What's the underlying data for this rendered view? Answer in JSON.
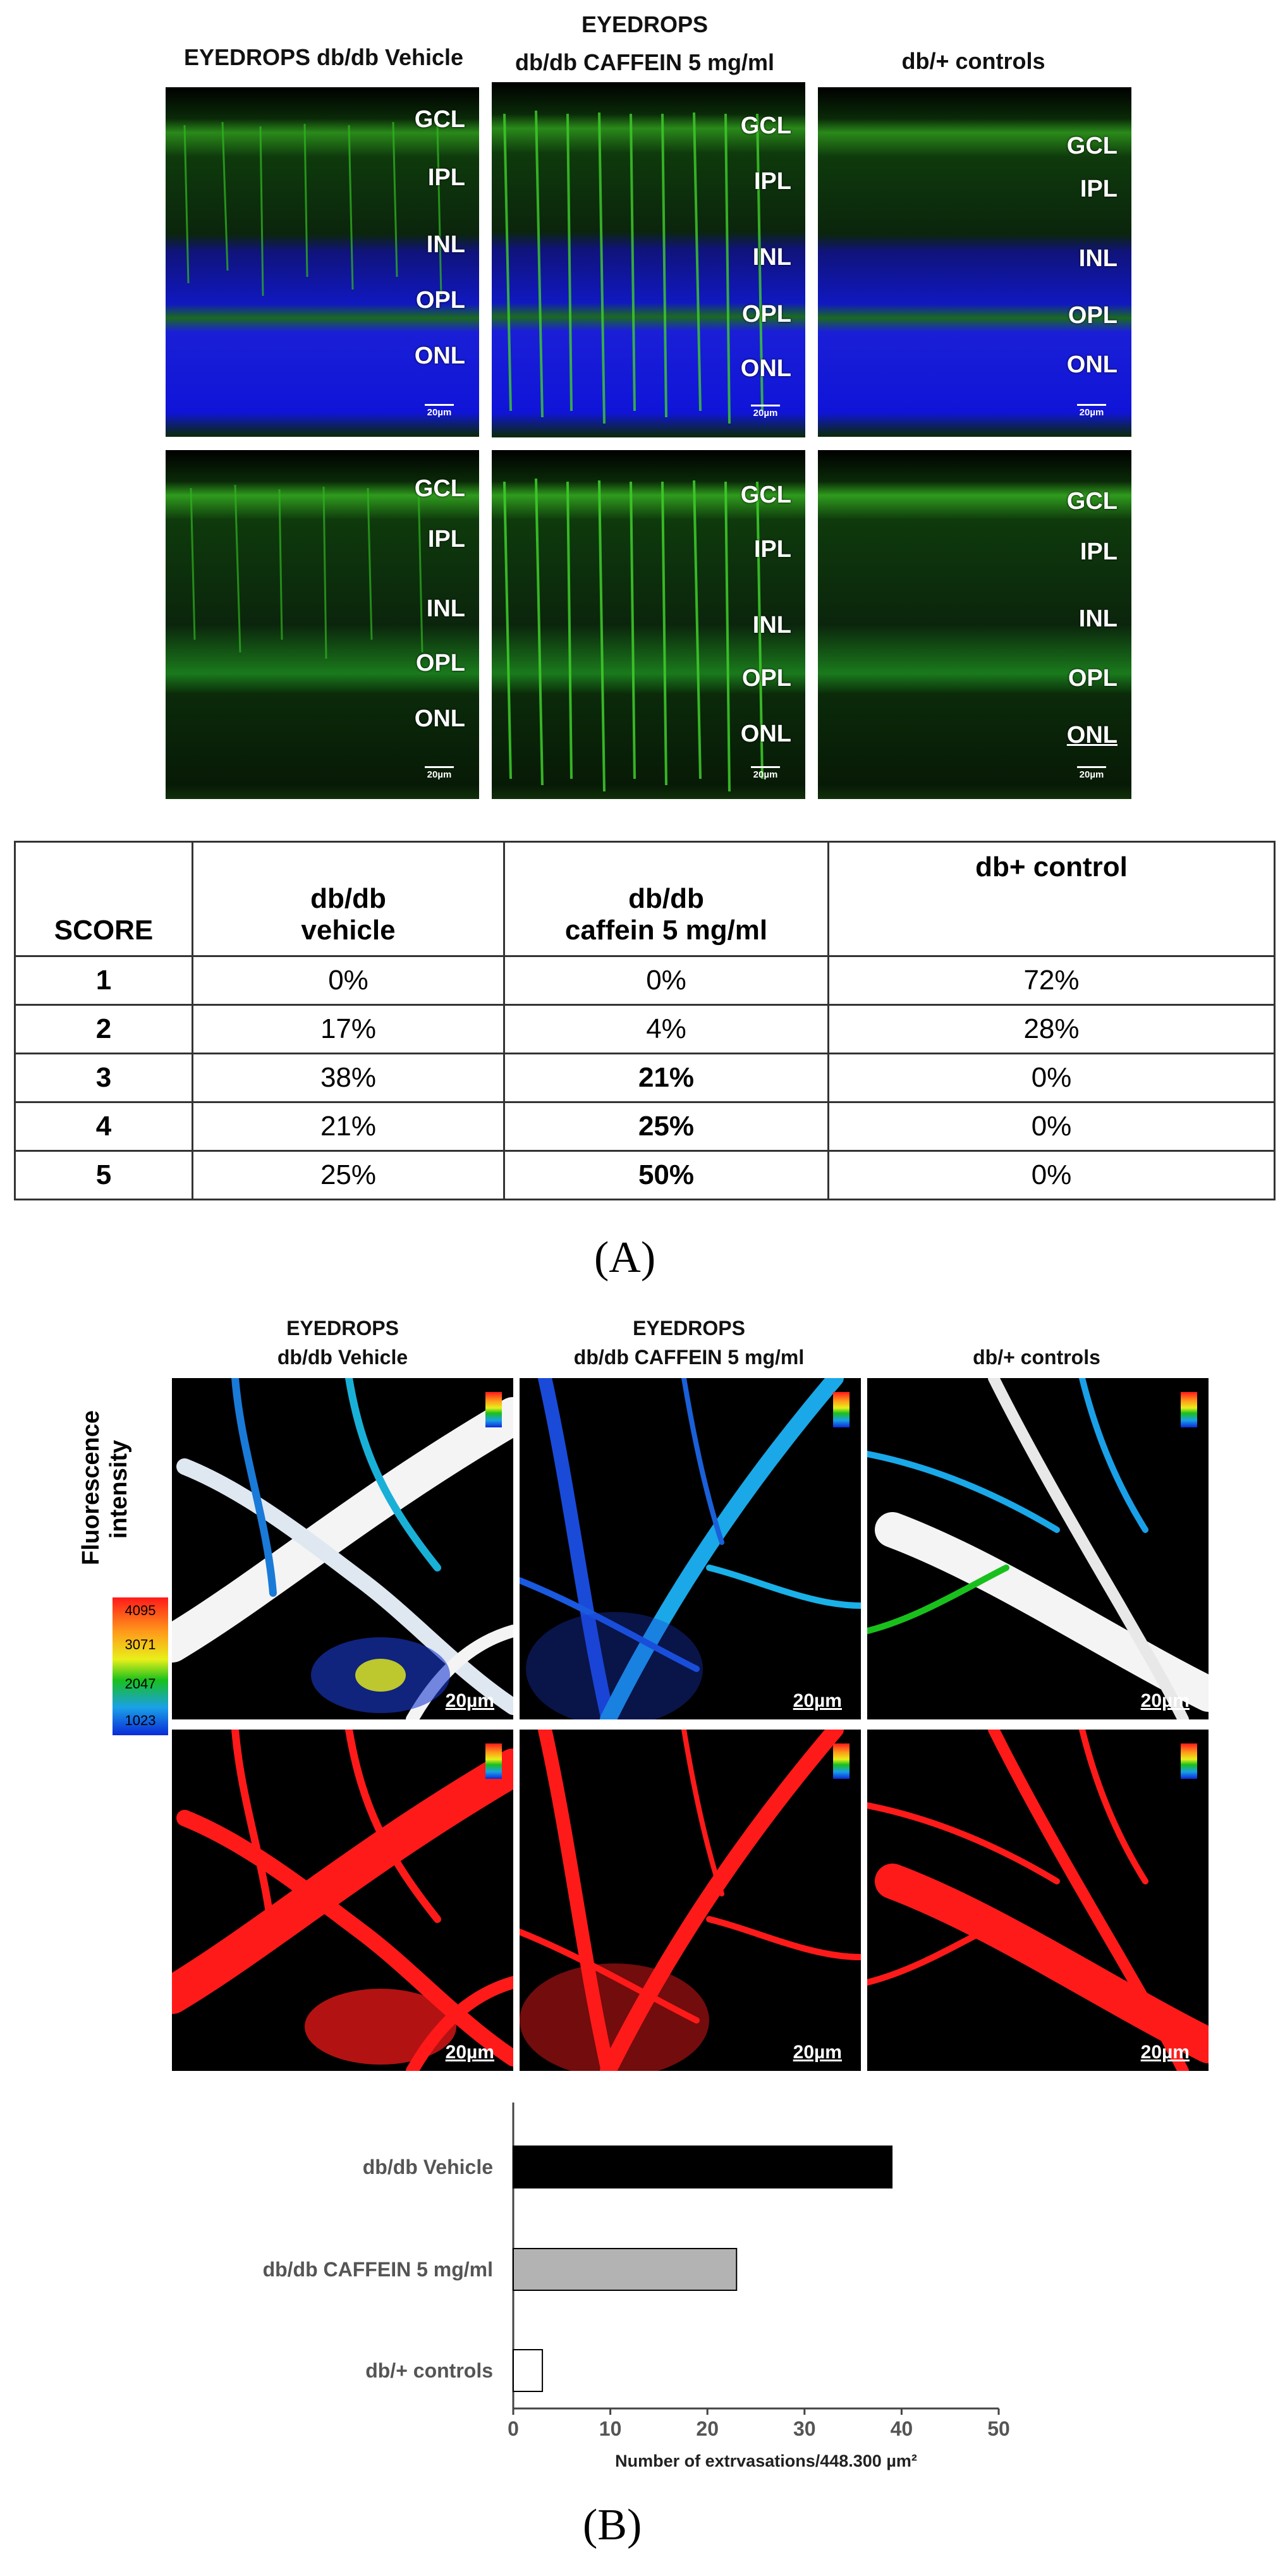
{
  "panelA": {
    "col_titles": [
      "EYEDROPS db/db Vehicle",
      "EYEDROPS",
      "db/db CAFFEIN 5 mg/ml",
      "db/+ controls"
    ],
    "layers": [
      "GCL",
      "IPL",
      "INL",
      "OPL",
      "ONL"
    ],
    "scalebar": "20µm",
    "table": {
      "headers": [
        "SCORE",
        "db/db",
        "vehicle",
        "db/db",
        "caffein 5 mg/ml",
        "db+ control"
      ],
      "rows": [
        {
          "score": "1",
          "vehicle": "0%",
          "caffein": "0%",
          "control": "72%"
        },
        {
          "score": "2",
          "vehicle": "17%",
          "caffein": "4%",
          "control": "28%"
        },
        {
          "score": "3",
          "vehicle": "38%",
          "caffein": "21%",
          "control": "0%"
        },
        {
          "score": "4",
          "vehicle": "21%",
          "caffein": "25%",
          "control": "0%"
        },
        {
          "score": "5",
          "vehicle": "25%",
          "caffein": "50%",
          "control": "0%"
        }
      ]
    },
    "label": "(A)"
  },
  "panelB": {
    "col_titles": [
      "EYEDROPS",
      "db/db Vehicle",
      "EYEDROPS",
      "db/db CAFFEIN 5 mg/ml",
      "db/+ controls"
    ],
    "fluorescence_label": [
      "Fluorescence",
      "intensity"
    ],
    "scale_values": [
      "4095",
      "3071",
      "2047",
      "1023"
    ],
    "scalebar": "20µm",
    "label": "(B)"
  },
  "chart_data": {
    "type": "bar",
    "orientation": "horizontal",
    "categories": [
      "db/db Vehicle",
      "db/db CAFFEIN 5 mg/ml",
      "db/+ controls"
    ],
    "values": [
      39,
      23,
      3
    ],
    "colors": [
      "#000000",
      "#b3b3b3",
      "#ffffff"
    ],
    "xlabel": "Number of extrvasations/448.300 µm²",
    "xlim": [
      0,
      50
    ],
    "xticks": [
      "0",
      "10",
      "20",
      "30",
      "40",
      "50"
    ],
    "grid": false
  }
}
